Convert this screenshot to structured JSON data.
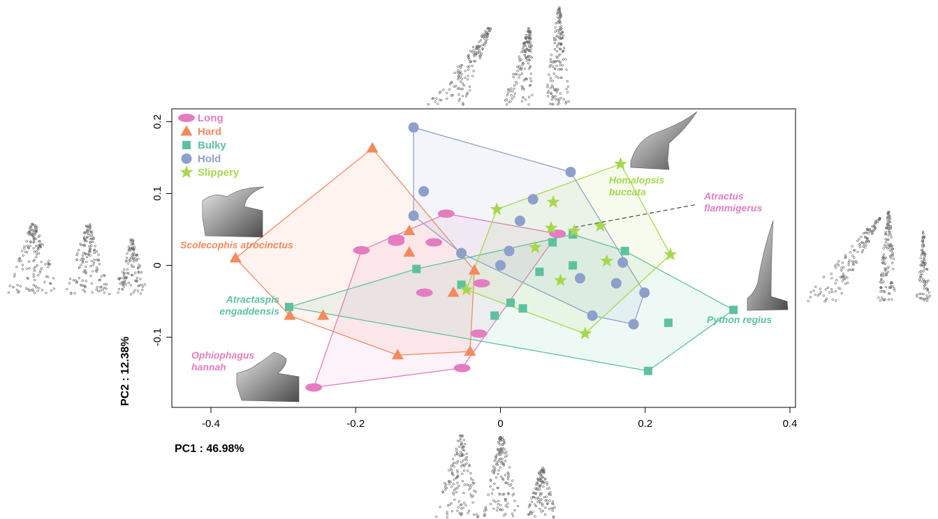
{
  "chart_data": {
    "type": "scatter",
    "xlabel": "PC1 : 46.98%",
    "ylabel": "PC2 : 12.38%",
    "xlim": [
      -0.45,
      0.41
    ],
    "ylim": [
      -0.195,
      0.215
    ],
    "xticks": [
      "-0.4",
      "-0.2",
      "0",
      "0.2",
      "0.4"
    ],
    "xtick_values": [
      -0.4,
      -0.2,
      0,
      0.2,
      0.4
    ],
    "yticks": [
      "-0.1",
      "0",
      "0.1",
      "0.2"
    ],
    "ytick_values": [
      -0.1,
      0,
      0.1,
      0.2
    ],
    "legend_position": "top-left",
    "grid": false,
    "convex_hulls": true,
    "series": [
      {
        "name": "Long",
        "marker": "ellipse",
        "color": "#E47DC0",
        "points": [
          [
            -0.075,
            0.072
          ],
          [
            0.079,
            0.044
          ],
          [
            -0.144,
            0.033
          ],
          [
            -0.144,
            0.037
          ],
          [
            -0.192,
            0.021
          ],
          [
            -0.092,
            0.032
          ],
          [
            -0.105,
            -0.038
          ],
          [
            -0.026,
            -0.025
          ],
          [
            -0.03,
            -0.095
          ],
          [
            -0.053,
            -0.143
          ],
          [
            -0.258,
            -0.17
          ]
        ]
      },
      {
        "name": "Hard",
        "marker": "triangle",
        "color": "#F4895E",
        "points": [
          [
            -0.177,
            0.163
          ],
          [
            -0.126,
            0.048
          ],
          [
            -0.126,
            0.018
          ],
          [
            -0.366,
            0.01
          ],
          [
            -0.036,
            -0.007
          ],
          [
            -0.065,
            -0.038
          ],
          [
            -0.291,
            -0.07
          ],
          [
            -0.245,
            -0.07
          ],
          [
            -0.142,
            -0.125
          ],
          [
            -0.042,
            -0.12
          ]
        ]
      },
      {
        "name": "Bulky",
        "marker": "square",
        "color": "#5DC1A0",
        "points": [
          [
            0.1,
            0.043
          ],
          [
            0.072,
            0.032
          ],
          [
            0.172,
            0.02
          ],
          [
            -0.116,
            -0.005
          ],
          [
            0.1,
            0.0
          ],
          [
            0.054,
            -0.009
          ],
          [
            -0.054,
            -0.027
          ],
          [
            0.014,
            -0.052
          ],
          [
            0.031,
            -0.06
          ],
          [
            -0.292,
            -0.058
          ],
          [
            -0.008,
            -0.07
          ],
          [
            0.322,
            -0.062
          ],
          [
            0.232,
            -0.08
          ],
          [
            0.204,
            -0.147
          ]
        ]
      },
      {
        "name": "Hold",
        "marker": "circle",
        "color": "#8D9FCB",
        "points": [
          [
            -0.12,
            0.192
          ],
          [
            0.097,
            0.13
          ],
          [
            -0.106,
            0.103
          ],
          [
            0.045,
            0.092
          ],
          [
            -0.12,
            0.069
          ],
          [
            0.027,
            0.062
          ],
          [
            0.012,
            0.02
          ],
          [
            -0.054,
            0.017
          ],
          [
            0.0,
            0.0
          ],
          [
            0.169,
            0.004
          ],
          [
            0.11,
            -0.018
          ],
          [
            0.16,
            -0.025
          ],
          [
            0.199,
            -0.038
          ],
          [
            0.127,
            -0.07
          ],
          [
            0.184,
            -0.082
          ]
        ]
      },
      {
        "name": "Slippery",
        "marker": "star",
        "color": "#A6D84E",
        "points": [
          [
            0.166,
            0.141
          ],
          [
            0.073,
            0.088
          ],
          [
            -0.005,
            0.078
          ],
          [
            0.138,
            0.055
          ],
          [
            0.07,
            0.052
          ],
          [
            0.102,
            0.048
          ],
          [
            0.048,
            0.025
          ],
          [
            0.147,
            0.006
          ],
          [
            0.235,
            0.015
          ],
          [
            0.083,
            -0.021
          ],
          [
            -0.047,
            -0.034
          ],
          [
            0.117,
            -0.095
          ]
        ]
      }
    ],
    "annotations": [
      {
        "text": "Scolecophis atrocinctus",
        "color": "#F4895E"
      },
      {
        "text": "Homalopsis",
        "color": "#A6D84E"
      },
      {
        "text": "buccata",
        "color": "#A6D84E"
      },
      {
        "text": "Atractus",
        "color": "#E47DC0"
      },
      {
        "text": "flammigerus",
        "color": "#E47DC0"
      },
      {
        "text": "Atractaspis",
        "color": "#5DC1A0"
      },
      {
        "text": "engaddensis",
        "color": "#5DC1A0"
      },
      {
        "text": "Python regius",
        "color": "#5DC1A0"
      },
      {
        "text": "Ophiophagus",
        "color": "#E47DC0"
      },
      {
        "text": "hannah",
        "color": "#E47DC0"
      }
    ]
  }
}
